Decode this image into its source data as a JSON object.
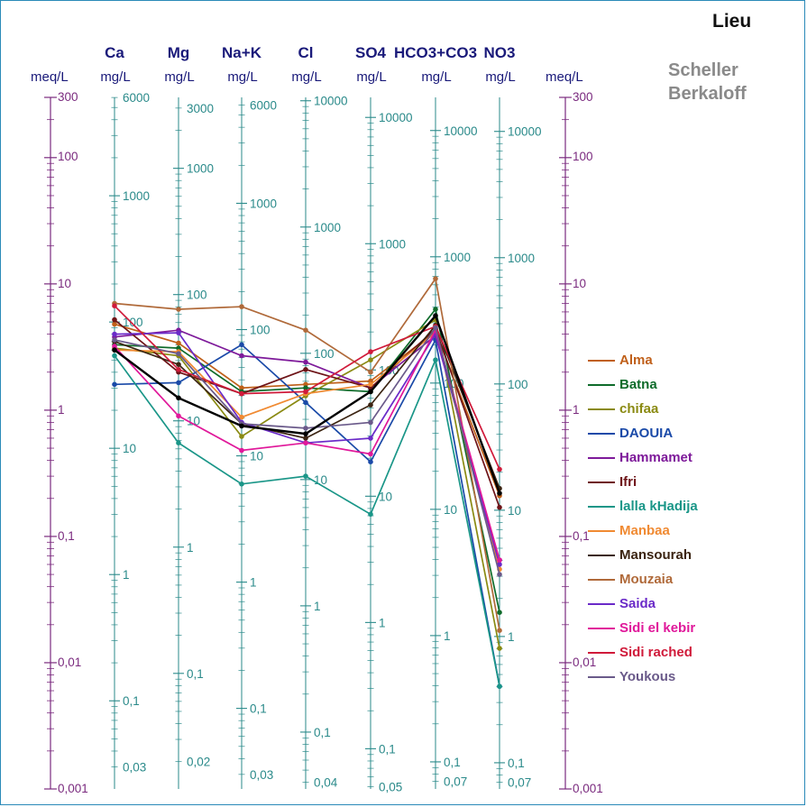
{
  "place_label": "Lieu",
  "method": [
    "Scheller",
    "Berkaloff"
  ],
  "chart_data": {
    "type": "line",
    "meq_unit": "meq/L",
    "meq_ticks": [
      "300",
      "100",
      "10",
      "1",
      "0,1",
      "0,01",
      "0,001"
    ],
    "meq_range": [
      0.001,
      300
    ],
    "axes": [
      {
        "name": "Ca",
        "unit": "mg/L",
        "mgl_ticks": [
          "6000",
          "1000",
          "100",
          "10",
          "1",
          "0,1",
          "0,03"
        ]
      },
      {
        "name": "Mg",
        "unit": "mg/L",
        "mgl_ticks": [
          "3000",
          "1000",
          "100",
          "10",
          "1",
          "0,1",
          "0,02"
        ]
      },
      {
        "name": "Na+K",
        "unit": "mg/L",
        "mgl_ticks": [
          "6000",
          "1000",
          "100",
          "10",
          "1",
          "0,1",
          "0,03"
        ]
      },
      {
        "name": "Cl",
        "unit": "mg/L",
        "mgl_ticks": [
          "10000",
          "1000",
          "100",
          "10",
          "1",
          "0,1",
          "0,04"
        ]
      },
      {
        "name": "SO4",
        "unit": "mg/L",
        "mgl_ticks": [
          "10000",
          "1000",
          "100",
          "10",
          "1",
          "0,1",
          "0,05"
        ]
      },
      {
        "name": "HCO3+CO3",
        "unit": "mg/L",
        "mgl_ticks": [
          "10000",
          "1000",
          "100",
          "10",
          "1",
          "0,1",
          "0,07"
        ]
      },
      {
        "name": "NO3",
        "unit": "mg/L",
        "mgl_ticks": [
          "10000",
          "1000",
          "100",
          "10",
          "1",
          "0,1",
          "0,07"
        ]
      }
    ],
    "series": [
      {
        "name": "Alma",
        "color": "#c0601a",
        "values": [
          4.8,
          3.4,
          1.5,
          1.6,
          1.7,
          4.2,
          0.21
        ]
      },
      {
        "name": "Batna",
        "color": "#0e6b2a",
        "values": [
          3.3,
          3.1,
          1.4,
          1.5,
          1.4,
          6.3,
          0.025
        ]
      },
      {
        "name": "chifaa",
        "color": "#8a8a12",
        "values": [
          3.1,
          2.7,
          0.62,
          1.3,
          2.5,
          5.2,
          0.013
        ]
      },
      {
        "name": "DAOUIA",
        "color": "#1a4aa8",
        "values": [
          1.6,
          1.65,
          3.3,
          1.15,
          0.39,
          3.6,
          0.0065
        ]
      },
      {
        "name": "Hammamet",
        "color": "#7e1a9a",
        "values": [
          3.8,
          4.3,
          2.7,
          2.4,
          1.5,
          3.9,
          0.065
        ]
      },
      {
        "name": "Ifri",
        "color": "#6e1418",
        "values": [
          5.2,
          2.0,
          1.35,
          2.1,
          1.5,
          4.4,
          0.17
        ]
      },
      {
        "name": "lalla kHadija",
        "color": "#1a9688",
        "values": [
          2.7,
          0.55,
          0.26,
          0.3,
          0.15,
          2.5,
          0.0065
        ]
      },
      {
        "name": "Manbaa",
        "color": "#f08a32",
        "values": [
          3.0,
          2.9,
          0.88,
          1.35,
          1.6,
          4.1,
          0.055
        ]
      },
      {
        "name": "Mansourah",
        "color": "#3b2412",
        "values": [
          3.5,
          2.3,
          0.78,
          0.6,
          1.1,
          4.7,
          0.24
        ]
      },
      {
        "name": "Mouzaia",
        "color": "#b06a3a",
        "values": [
          7.0,
          6.3,
          6.6,
          4.3,
          2.0,
          11.0,
          0.018
        ]
      },
      {
        "name": "Saida",
        "color": "#6a2ac8",
        "values": [
          4.0,
          4.1,
          0.8,
          0.55,
          0.6,
          4.0,
          0.06
        ]
      },
      {
        "name": "Sidi el kebir",
        "color": "#e0189a",
        "values": [
          3.2,
          0.9,
          0.48,
          0.55,
          0.45,
          4.3,
          0.065
        ]
      },
      {
        "name": "Sidi rached",
        "color": "#d01a3a",
        "values": [
          6.7,
          2.1,
          1.35,
          1.4,
          2.9,
          4.6,
          0.34
        ]
      },
      {
        "name": "Youkous",
        "color": "#6a5a8a",
        "values": [
          3.6,
          2.8,
          0.78,
          0.72,
          0.8,
          4.5,
          0.05
        ]
      },
      {
        "name": "",
        "color": "#000000",
        "values": [
          3.0,
          1.25,
          0.75,
          0.65,
          1.4,
          5.6,
          0.22
        ]
      }
    ]
  }
}
